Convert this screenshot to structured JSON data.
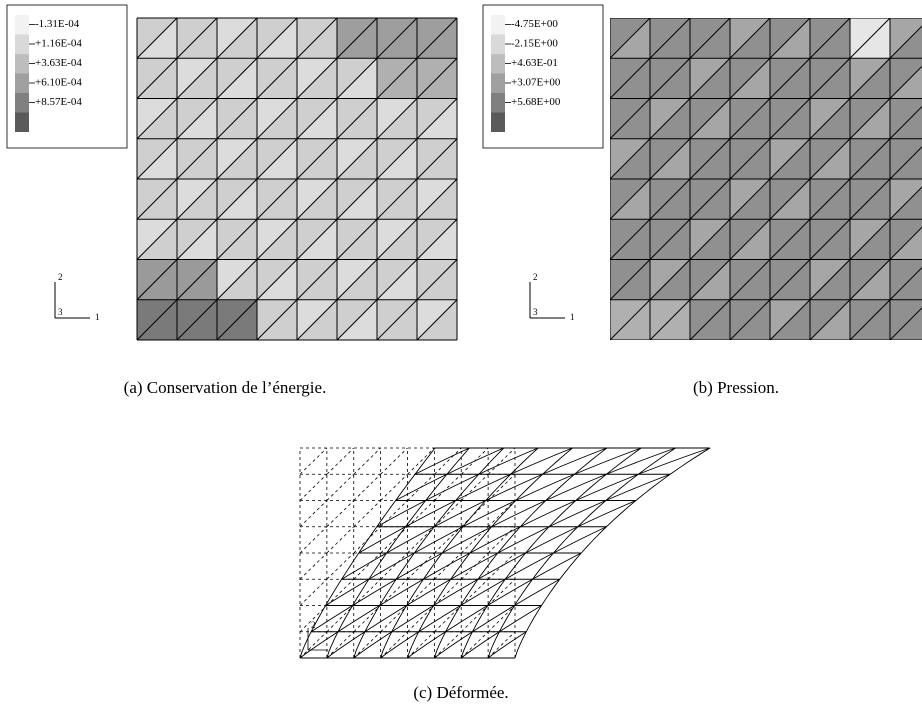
{
  "panels": [
    {
      "legend": [
        "-1.31E-04",
        "+1.16E-04",
        "+3.63E-04",
        "+6.10E-04",
        "+8.57E-04"
      ],
      "axes": [
        "2",
        "3",
        "1"
      ],
      "caption": "(a) Conservation de l’énergie."
    },
    {
      "legend": [
        "-4.75E+00",
        "-2.15E+00",
        "+4.63E-01",
        "+3.07E+00",
        "+5.68E+00"
      ],
      "axes": [
        "2",
        "3",
        "1"
      ],
      "caption": "(b) Pression."
    },
    {
      "axes": [
        "2"
      ],
      "caption": "(c) Déformée."
    }
  ]
}
